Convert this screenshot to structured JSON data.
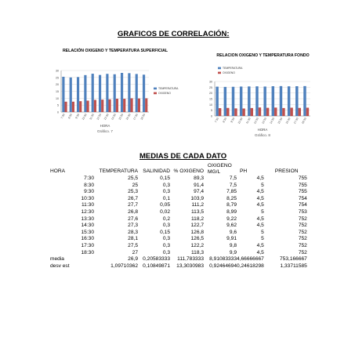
{
  "page": {
    "heading1": "GRAFICOS DE CORRELACIÓN:",
    "heading2": "MEDIAS DE CADA DATO"
  },
  "chart_data": [
    {
      "type": "bar",
      "title": "RELACIÓN OXIGENO Y TEMPERATURA SUPERFICIAL",
      "caption": "Gráfico. 7",
      "xlabel": "HORA",
      "categories": [
        "7:30",
        "8:30",
        "9:30",
        "10:30",
        "11:30",
        "12:30",
        "13:30",
        "14:30",
        "15:30",
        "16:30",
        "17:30",
        "18:30"
      ],
      "ylim": [
        0,
        30
      ],
      "yticks": [
        "0",
        "5",
        "10",
        "15",
        "20",
        "25",
        "30"
      ],
      "legend_position": "right",
      "series": [
        {
          "name": "TEMPERATURA",
          "color": "#4f81bd",
          "values": [
            25.5,
            25,
            25.3,
            26.7,
            27.7,
            26.8,
            27.6,
            27.3,
            28.3,
            28.1,
            27.5,
            27
          ]
        },
        {
          "name": "OXIGENO",
          "color": "#c0504d",
          "values": [
            7.5,
            7.5,
            7.85,
            8.25,
            8.79,
            8.99,
            9.22,
            9.62,
            9.6,
            9.91,
            9.8,
            9.9
          ]
        }
      ]
    },
    {
      "type": "bar",
      "title": "RELACION OXIGENO Y TEMPERATURA FONDO",
      "caption": "Gráfico. 8",
      "xlabel": "HORA",
      "categories": [
        "7:30",
        "8:30",
        "9:30",
        "10:30",
        "11:30",
        "12:30",
        "13:30",
        "14:30",
        "15:30",
        "16:30",
        "17:30",
        "18:30"
      ],
      "ylim": [
        0,
        30
      ],
      "yticks": [
        "0",
        "5",
        "10",
        "15",
        "20",
        "25",
        "30"
      ],
      "legend_position": "top",
      "series": [
        {
          "name": "TEMPERATURA",
          "color": "#4f81bd",
          "values": [
            25.5,
            25.3,
            25.4,
            25.6,
            25.7,
            25.8,
            25.6,
            25.9,
            26.0,
            25.8,
            25.9,
            26.0
          ]
        },
        {
          "name": "OXIGENO",
          "color": "#c0504d",
          "values": [
            6.8,
            7.0,
            6.6,
            6.5,
            6.9,
            7.4,
            7.1,
            7.3,
            6.9,
            7.2,
            7.0,
            7.2
          ]
        }
      ]
    }
  ],
  "table": {
    "headers": {
      "hora": "HORA",
      "temperatura": "TEMPERATURA",
      "salinidad": "SALINIDAD",
      "oxigeno": "% OXIGENO",
      "oxigeno_mgl_line1": "OXIGENO",
      "oxigeno_mgl_line2": "MG/L",
      "ph": "PH",
      "presion": "PRESION"
    },
    "rows": [
      [
        "7:30",
        "25,5",
        "0,15",
        "89,3",
        "7,5",
        "4,5",
        "755"
      ],
      [
        "8:30",
        "25",
        "0,3",
        "91,4",
        "7,5",
        "5",
        "755"
      ],
      [
        "9:30",
        "25,3",
        "0,3",
        "97,4",
        "7,85",
        "4,5",
        "755"
      ],
      [
        "10:30",
        "26,7",
        "0,1",
        "103,9",
        "8,25",
        "4,5",
        "754"
      ],
      [
        "11:30",
        "27,7",
        "0,05",
        "111,2",
        "8,79",
        "4,5",
        "754"
      ],
      [
        "12:30",
        "26,8",
        "0,02",
        "113,5",
        "8,99",
        "5",
        "753"
      ],
      [
        "13:30",
        "27,6",
        "0,2",
        "118,2",
        "9,22",
        "4,5",
        "752"
      ],
      [
        "14:30",
        "27,3",
        "0,3",
        "122,7",
        "9,62",
        "4,5",
        "752"
      ],
      [
        "15:30",
        "28,3",
        "0,15",
        "126,8",
        "9,6",
        "5",
        "752"
      ],
      [
        "16:30",
        "28,1",
        "0,3",
        "126,5",
        "9,91",
        "5",
        "752"
      ],
      [
        "17:30",
        "27,5",
        "0,3",
        "122,2",
        "9,8",
        "4,5",
        "752"
      ],
      [
        "18:30",
        "27",
        "0,3",
        "118,3",
        "9,9",
        "4,5",
        "752"
      ]
    ],
    "media": [
      "media",
      "26,9",
      "0,20583333",
      "111,783333",
      "8,91083333",
      "4,66666667",
      "753,166667"
    ],
    "desv": [
      "desv est",
      "1,09710362",
      "0,10849871",
      "13,3030983",
      "0,92464694",
      "0,24618298",
      "1,33711585"
    ]
  }
}
